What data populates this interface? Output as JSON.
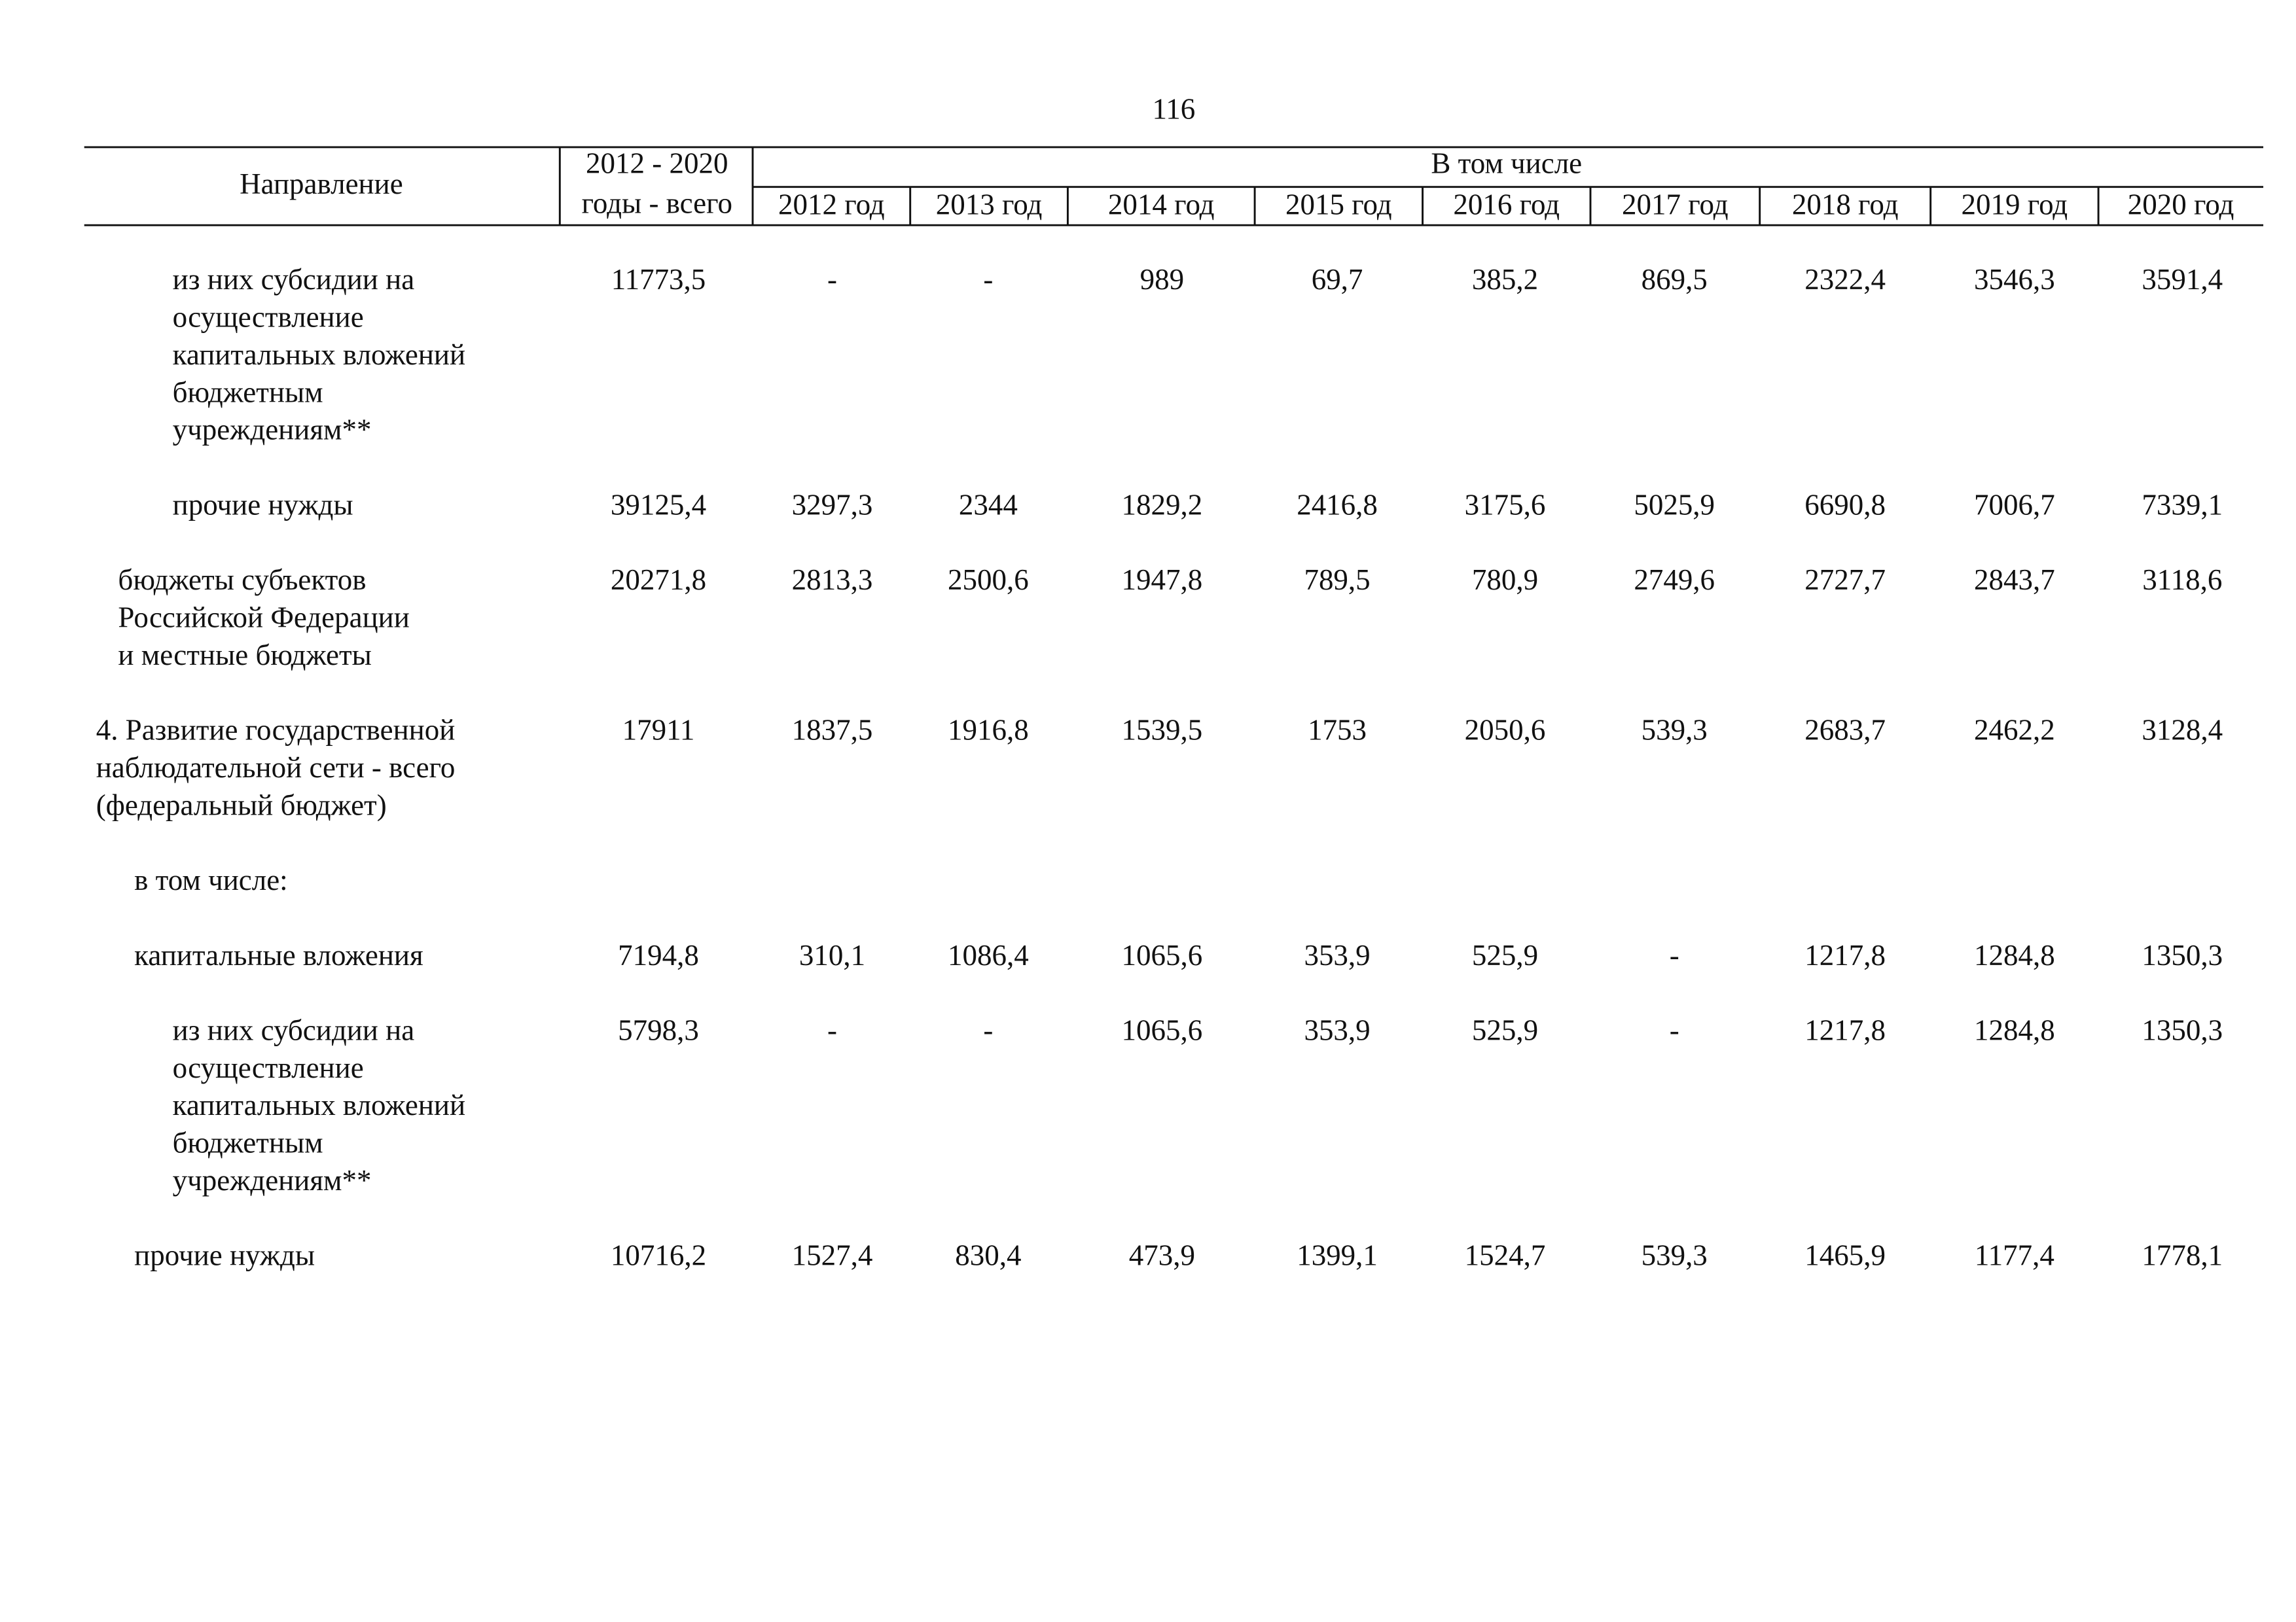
{
  "header": {
    "page_number": "116",
    "direction": "Направление",
    "total_line1": "2012 - 2020",
    "total_line2": "годы - всего",
    "subheader": "В том числе",
    "years": [
      "2012 год",
      "2013 год",
      "2014 год",
      "2015 год",
      "2016 год",
      "2017 год",
      "2018 год",
      "2019 год",
      "2020 год"
    ]
  },
  "table": {
    "rows": [
      {
        "label": [
          "из них субсидии на",
          "осуществление",
          "капитальных вложений",
          "бюджетным",
          "учреждениям**"
        ],
        "values": [
          "11773,5",
          "-",
          "-",
          "989",
          "69,7",
          "385,2",
          "869,5",
          "2322,4",
          "3546,3",
          "3591,4"
        ]
      },
      {
        "label": [
          "прочие нужды"
        ],
        "values": [
          "39125,4",
          "3297,3",
          "2344",
          "1829,2",
          "2416,8",
          "3175,6",
          "5025,9",
          "6690,8",
          "7006,7",
          "7339,1"
        ]
      },
      {
        "label": [
          "бюджеты субъектов",
          "Российской Федерации",
          "и местные бюджеты"
        ],
        "values": [
          "20271,8",
          "2813,3",
          "2500,6",
          "1947,8",
          "789,5",
          "780,9",
          "2749,6",
          "2727,7",
          "2843,7",
          "3118,6"
        ]
      },
      {
        "label": [
          "4. Развитие государственной",
          "наблюдательной сети - всего",
          "(федеральный бюджет)"
        ],
        "values": [
          "17911",
          "1837,5",
          "1916,8",
          "1539,5",
          "1753",
          "2050,6",
          "539,3",
          "2683,7",
          "2462,2",
          "3128,4"
        ]
      },
      {
        "label": [
          "в том числе:"
        ],
        "values": []
      },
      {
        "label": [
          "капитальные вложения"
        ],
        "values": [
          "7194,8",
          "310,1",
          "1086,4",
          "1065,6",
          "353,9",
          "525,9",
          "-",
          "1217,8",
          "1284,8",
          "1350,3"
        ]
      },
      {
        "label": [
          "из них субсидии на",
          "осуществление",
          "капитальных вложений",
          "бюджетным",
          "учреждениям**"
        ],
        "values": [
          "5798,3",
          "-",
          "-",
          "1065,6",
          "353,9",
          "525,9",
          "-",
          "1217,8",
          "1284,8",
          "1350,3"
        ]
      },
      {
        "label": [
          "прочие нужды"
        ],
        "values": [
          "10716,2",
          "1527,4",
          "830,4",
          "473,9",
          "1399,1",
          "1524,7",
          "539,3",
          "1465,9",
          "1177,4",
          "1778,1"
        ]
      }
    ]
  }
}
